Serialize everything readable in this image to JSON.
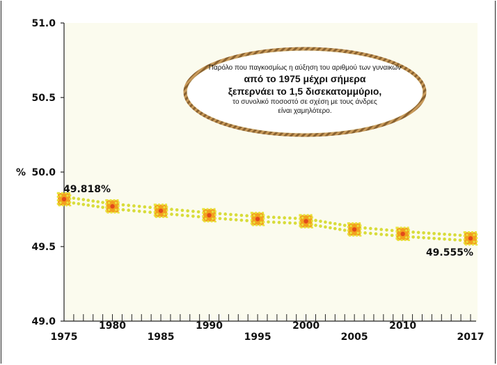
{
  "chart_data": {
    "type": "line",
    "title": "",
    "xlabel": "",
    "ylabel": "%",
    "ylim": [
      49.0,
      51.0
    ],
    "yticks": [
      "51.0",
      "50.5",
      "50.0",
      "49.5",
      "49.0"
    ],
    "xlim": [
      1975,
      2017
    ],
    "xticks": [
      "1975",
      "1980",
      "1985",
      "1990",
      "1995",
      "2000",
      "2005",
      "2010",
      "2017"
    ],
    "grid": false,
    "series": [
      {
        "name": "",
        "x": [
          1975,
          1980,
          1985,
          1990,
          1995,
          2000,
          2005,
          2010,
          2017
        ],
        "y": [
          49.818,
          49.77,
          49.74,
          49.71,
          49.685,
          49.67,
          49.615,
          49.585,
          49.555
        ]
      }
    ],
    "labels": {
      "start": "49.818%",
      "end": "49.555%"
    },
    "annotation": {
      "line1": "Παρόλο που παγκοσμίως η αύξηση του αριθμού των γυναικών",
      "line2": "από το 1975 μέχρι σήμερα",
      "line3": "ξεπερνάει το 1,5 δισεκατομμύριο,",
      "line4": "το συνολικό ποσοστό σε σχέση με τους άνδρες",
      "line5": "είναι χαμηλότερο."
    },
    "colors": {
      "line_dots": "#d8dc3a",
      "marker_fill": "#f2a11e",
      "marker_border": "#e8e43c",
      "marker_center": "#e24a1c",
      "rope": "#b48a4c",
      "background": "#fbfbee"
    }
  }
}
